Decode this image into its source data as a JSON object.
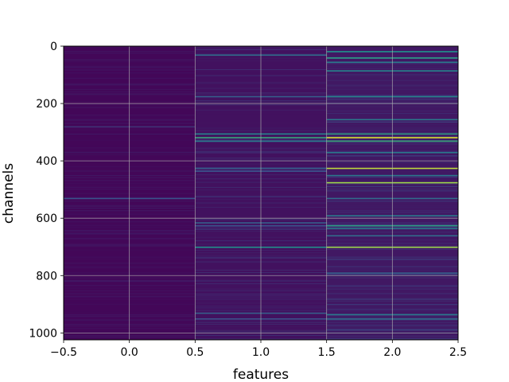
{
  "chart_data": {
    "type": "heatmap",
    "title": "",
    "xlabel": "features",
    "ylabel": "channels",
    "xlim": [
      -0.5,
      2.5
    ],
    "ylim": [
      1024,
      0
    ],
    "y_inverted": true,
    "colormap": "viridis",
    "grid": true,
    "x_ticks": [
      -0.5,
      0.0,
      0.5,
      1.0,
      1.5,
      2.0,
      2.5
    ],
    "x_tick_labels": [
      "−0.5",
      "0.0",
      "0.5",
      "1.0",
      "1.5",
      "2.0",
      "2.5"
    ],
    "y_ticks": [
      0,
      200,
      400,
      600,
      800,
      1000
    ],
    "y_tick_labels": [
      "0",
      "200",
      "400",
      "600",
      "800",
      "1000"
    ],
    "columns": [
      {
        "feature": 0,
        "highlights": [
          {
            "channel": 280,
            "value": 0.15
          },
          {
            "channel": 530,
            "value": 0.25
          }
        ]
      },
      {
        "feature": 1,
        "highlights": [
          {
            "channel": 30,
            "value": 0.35
          },
          {
            "channel": 175,
            "value": 0.3
          },
          {
            "channel": 305,
            "value": 0.45
          },
          {
            "channel": 318,
            "value": 0.6
          },
          {
            "channel": 330,
            "value": 0.4
          },
          {
            "channel": 425,
            "value": 0.3
          },
          {
            "channel": 435,
            "value": 0.25
          },
          {
            "channel": 615,
            "value": 0.3
          },
          {
            "channel": 625,
            "value": 0.25
          },
          {
            "channel": 700,
            "value": 0.5
          },
          {
            "channel": 930,
            "value": 0.3
          },
          {
            "channel": 950,
            "value": 0.25
          }
        ]
      },
      {
        "feature": 2,
        "highlights": [
          {
            "channel": 18,
            "value": 0.5
          },
          {
            "channel": 40,
            "value": 0.55
          },
          {
            "channel": 55,
            "value": 0.4
          },
          {
            "channel": 85,
            "value": 0.45
          },
          {
            "channel": 175,
            "value": 0.45
          },
          {
            "channel": 255,
            "value": 0.4
          },
          {
            "channel": 305,
            "value": 0.55
          },
          {
            "channel": 318,
            "value": 0.95
          },
          {
            "channel": 330,
            "value": 0.6
          },
          {
            "channel": 370,
            "value": 0.4
          },
          {
            "channel": 425,
            "value": 0.9
          },
          {
            "channel": 450,
            "value": 0.4
          },
          {
            "channel": 475,
            "value": 0.85
          },
          {
            "channel": 530,
            "value": 0.35
          },
          {
            "channel": 590,
            "value": 0.4
          },
          {
            "channel": 625,
            "value": 0.55
          },
          {
            "channel": 635,
            "value": 0.4
          },
          {
            "channel": 660,
            "value": 0.35
          },
          {
            "channel": 700,
            "value": 0.85
          },
          {
            "channel": 790,
            "value": 0.3
          },
          {
            "channel": 935,
            "value": 0.4
          },
          {
            "channel": 950,
            "value": 0.35
          }
        ]
      }
    ]
  }
}
